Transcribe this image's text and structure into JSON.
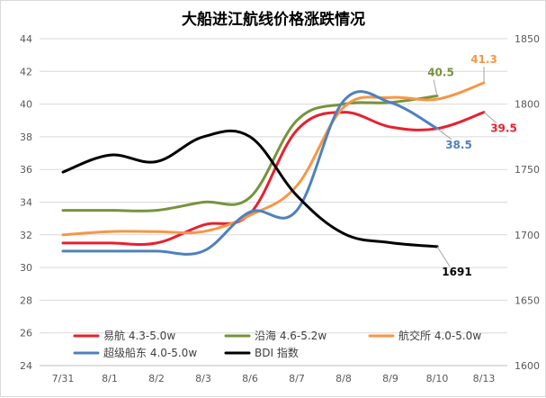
{
  "chart_data": {
    "type": "line",
    "title": "大船进江航线价格涨跌情况",
    "categories": [
      "7/31",
      "8/1",
      "8/2",
      "8/3",
      "8/6",
      "8/7",
      "8/8",
      "8/9",
      "8/10",
      "8/13"
    ],
    "y_left": {
      "min": 24,
      "max": 44,
      "step": 2,
      "ticks": [
        "24",
        "26",
        "28",
        "30",
        "32",
        "34",
        "36",
        "38",
        "40",
        "42",
        "44"
      ]
    },
    "y_right": {
      "min": 1600,
      "max": 1850,
      "step": 50,
      "ticks": [
        "1600",
        "1650",
        "1700",
        "1750",
        "1800",
        "1850"
      ]
    },
    "grid": true,
    "legend_position": "bottom-left",
    "series": [
      {
        "name": "易航 4.3-5.0w",
        "axis": "left",
        "color": "#e8202f",
        "values": [
          31.5,
          31.5,
          31.5,
          32.6,
          33.3,
          38.4,
          39.5,
          38.6,
          38.5,
          39.5
        ],
        "end_label": "39.5"
      },
      {
        "name": "沿海 4.6-5.2w",
        "axis": "left",
        "color": "#77933c",
        "values": [
          33.5,
          33.5,
          33.5,
          34.0,
          34.3,
          39.0,
          40.0,
          40.1,
          40.5,
          null
        ],
        "end_label": "40.5"
      },
      {
        "name": "航交所 4.0-5.0w",
        "axis": "left",
        "color": "#f79646",
        "values": [
          32.0,
          32.2,
          32.2,
          32.2,
          33.2,
          35.0,
          39.8,
          40.4,
          40.3,
          41.3
        ],
        "end_label": "41.3"
      },
      {
        "name": "超级船东 4.0-5.0w",
        "axis": "left",
        "color": "#4f81bd",
        "values": [
          31.0,
          31.0,
          31.0,
          31.0,
          33.4,
          33.5,
          40.2,
          40.1,
          38.5,
          null
        ],
        "end_label": "38.5"
      },
      {
        "name": "BDI 指数",
        "axis": "right",
        "color": "#000000",
        "values": [
          1748,
          1761,
          1756,
          1775,
          1775,
          1730,
          1701,
          1694,
          1691,
          null
        ],
        "end_label": "1691"
      }
    ]
  },
  "colors": {
    "grid": "#d9d9d9",
    "axis_text": "#595959"
  }
}
